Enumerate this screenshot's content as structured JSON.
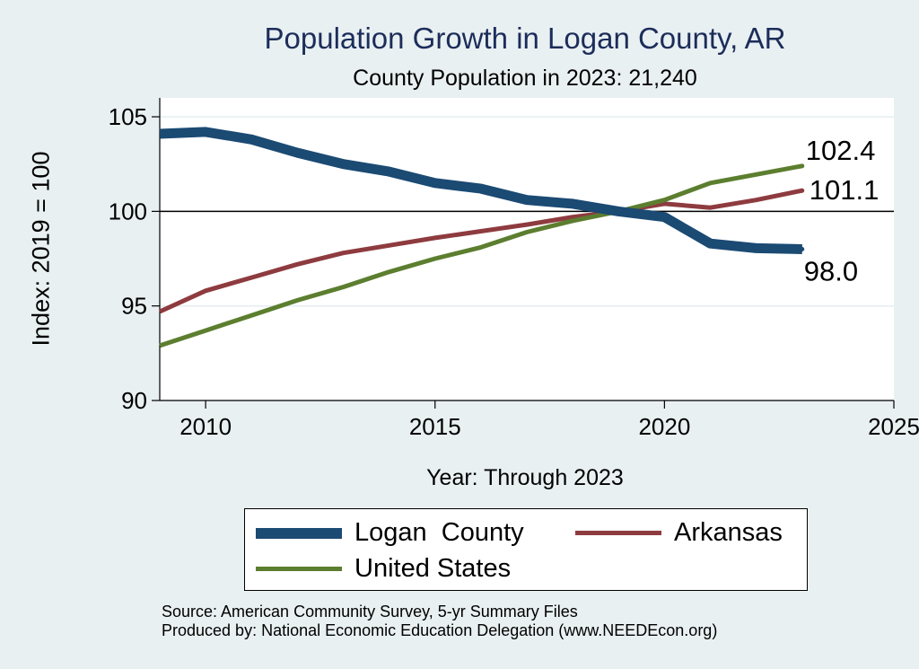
{
  "title": "Population Growth in Logan County, AR",
  "subtitle": "County Population in 2023: 21,240",
  "source_line": "Source: American Community Survey, 5-yr Summary Files",
  "produced_line": "Produced by: National Economic Education Delegation (www.NEEDEcon.org)",
  "chart_data": {
    "type": "line",
    "xlabel": "Year: Through 2023",
    "ylabel": "Index: 2019 = 100",
    "xlim": [
      2009,
      2025
    ],
    "ylim": [
      90,
      106
    ],
    "x_ticks": [
      "2010",
      "2015",
      "2020",
      "2025"
    ],
    "y_ticks": [
      "90",
      "95",
      "100",
      "105"
    ],
    "reference_line": 100,
    "x": [
      2009,
      2010,
      2011,
      2012,
      2013,
      2014,
      2015,
      2016,
      2017,
      2018,
      2019,
      2020,
      2021,
      2022,
      2023
    ],
    "series": [
      {
        "name": "Logan  County",
        "color": "#1b4a73",
        "values": [
          104.1,
          104.2,
          103.8,
          103.1,
          102.5,
          102.1,
          101.5,
          101.2,
          100.6,
          100.4,
          100.0,
          99.7,
          98.3,
          98.05,
          98.0
        ],
        "end_label": "98.0"
      },
      {
        "name": "Arkansas",
        "color": "#8e3b3f",
        "values": [
          94.7,
          95.8,
          96.5,
          97.2,
          97.8,
          98.2,
          98.6,
          98.95,
          99.3,
          99.7,
          100.0,
          100.4,
          100.2,
          100.6,
          101.1
        ],
        "end_label": "101.1"
      },
      {
        "name": "United States",
        "color": "#5c7e2f",
        "values": [
          92.9,
          93.7,
          94.5,
          95.3,
          96.0,
          96.8,
          97.5,
          98.1,
          98.9,
          99.5,
          100.0,
          100.6,
          101.5,
          101.95,
          102.4
        ],
        "end_label": "102.4"
      }
    ]
  }
}
